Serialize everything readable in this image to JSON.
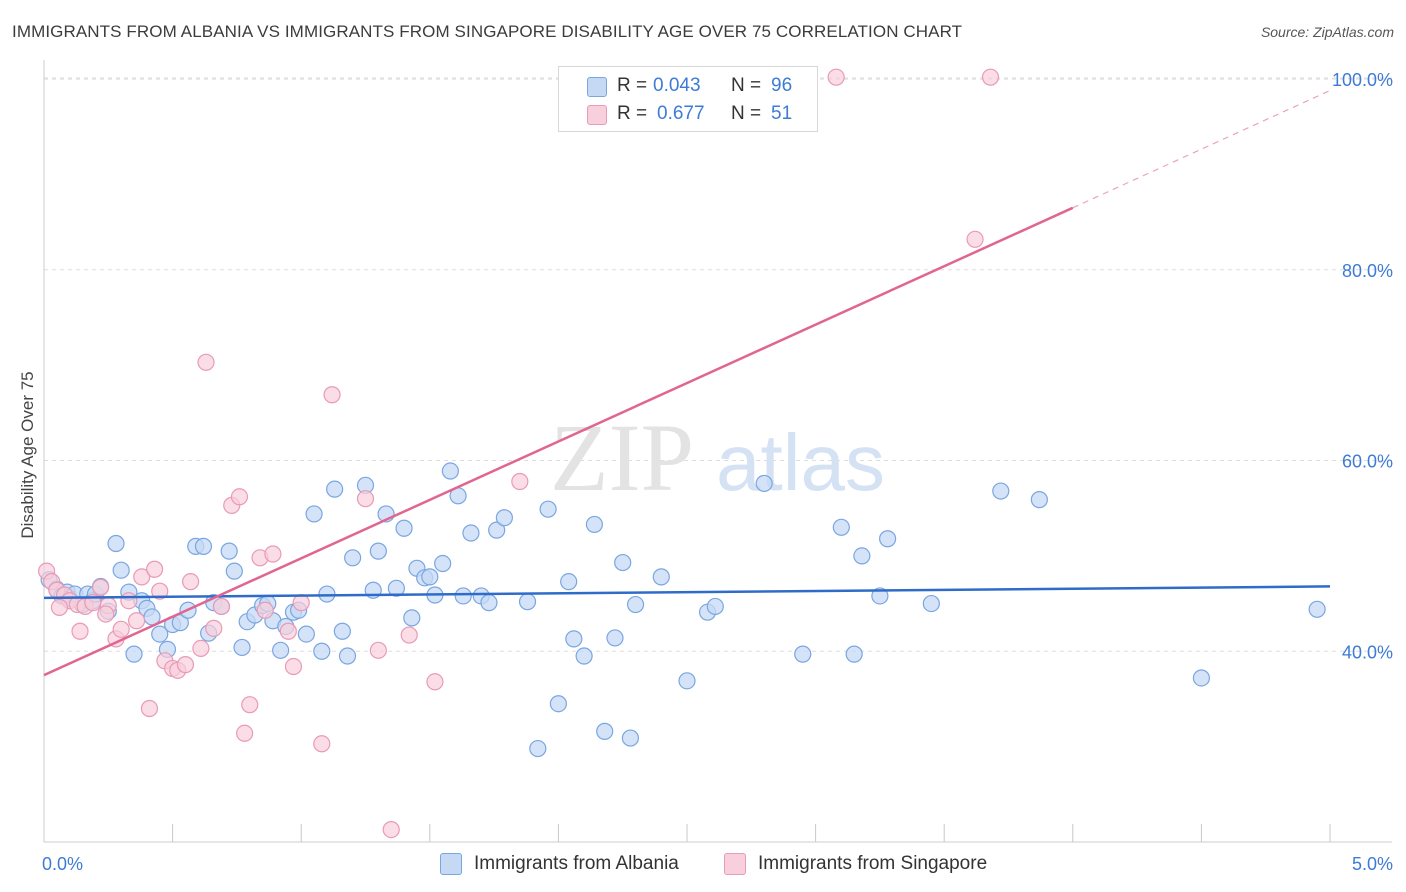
{
  "title": "IMMIGRANTS FROM ALBANIA VS IMMIGRANTS FROM SINGAPORE DISABILITY AGE OVER 75 CORRELATION CHART",
  "source": "Source: ZipAtlas.com",
  "watermark": {
    "zip": "ZIP",
    "atlas": "atlas"
  },
  "legend": {
    "rows": [
      {
        "r_label": "R =",
        "r_value": "0.043",
        "n_label": "N =",
        "n_value": "96"
      },
      {
        "r_label": "R =",
        "r_value": "0.677",
        "n_label": "N =",
        "n_value": "51"
      }
    ]
  },
  "colors": {
    "albania_fill": "#c5d9f5",
    "albania_stroke": "#7aa6e0",
    "albania_line": "#2f6cc9",
    "singapore_fill": "#f8cfdc",
    "singapore_stroke": "#e99ab5",
    "singapore_line": "#e06591",
    "tick_text": "#3d7bd4",
    "grid": "#dddddd"
  },
  "chart_data": {
    "type": "scatter",
    "title": "IMMIGRANTS FROM ALBANIA VS IMMIGRANTS FROM SINGAPORE DISABILITY AGE OVER 75 CORRELATION CHART",
    "xlabel": "",
    "ylabel": "Disability Age Over 75",
    "xlim": [
      0,
      5
    ],
    "ylim": [
      20,
      102
    ],
    "x_tick_labels": [
      "0.0%",
      "5.0%"
    ],
    "y_ticks": [
      40,
      60,
      80,
      100
    ],
    "y_tick_labels": [
      "40.0%",
      "60.0%",
      "80.0%",
      "100.0%"
    ],
    "grid": true,
    "legend_position": "top-center",
    "series": [
      {
        "name": "Immigrants from Albania",
        "R": 0.043,
        "N": 96,
        "trend": {
          "x": [
            0,
            5
          ],
          "y": [
            45.6,
            46.8
          ]
        },
        "points": [
          [
            0.02,
            47.5
          ],
          [
            0.05,
            46.5
          ],
          [
            0.07,
            45.8
          ],
          [
            0.09,
            46.2
          ],
          [
            0.1,
            45.5
          ],
          [
            0.12,
            46
          ],
          [
            0.15,
            44.9
          ],
          [
            0.17,
            46
          ],
          [
            0.19,
            45.3
          ],
          [
            0.2,
            46
          ],
          [
            0.22,
            46.8
          ],
          [
            0.25,
            44.2
          ],
          [
            0.28,
            51.3
          ],
          [
            0.3,
            48.5
          ],
          [
            0.33,
            46.2
          ],
          [
            0.35,
            39.7
          ],
          [
            0.38,
            45.3
          ],
          [
            0.4,
            44.5
          ],
          [
            0.42,
            43.6
          ],
          [
            0.45,
            41.8
          ],
          [
            0.48,
            40.2
          ],
          [
            0.5,
            42.8
          ],
          [
            0.53,
            43
          ],
          [
            0.56,
            44.3
          ],
          [
            0.59,
            51
          ],
          [
            0.62,
            51
          ],
          [
            0.64,
            41.9
          ],
          [
            0.66,
            45.1
          ],
          [
            0.69,
            44.7
          ],
          [
            0.72,
            50.5
          ],
          [
            0.74,
            48.4
          ],
          [
            0.77,
            40.4
          ],
          [
            0.79,
            43.1
          ],
          [
            0.82,
            43.8
          ],
          [
            0.85,
            44.8
          ],
          [
            0.87,
            45
          ],
          [
            0.89,
            43.2
          ],
          [
            0.92,
            40.1
          ],
          [
            0.94,
            42.6
          ],
          [
            0.97,
            44.1
          ],
          [
            0.99,
            44.3
          ],
          [
            1.02,
            41.8
          ],
          [
            1.05,
            54.4
          ],
          [
            1.08,
            40
          ],
          [
            1.1,
            46
          ],
          [
            1.13,
            57
          ],
          [
            1.16,
            42.1
          ],
          [
            1.18,
            39.5
          ],
          [
            1.2,
            49.8
          ],
          [
            1.25,
            57.4
          ],
          [
            1.28,
            46.4
          ],
          [
            1.3,
            50.5
          ],
          [
            1.33,
            54.4
          ],
          [
            1.37,
            46.6
          ],
          [
            1.4,
            52.9
          ],
          [
            1.43,
            43.5
          ],
          [
            1.45,
            48.7
          ],
          [
            1.48,
            47.7
          ],
          [
            1.5,
            47.8
          ],
          [
            1.52,
            45.9
          ],
          [
            1.55,
            49.2
          ],
          [
            1.58,
            58.9
          ],
          [
            1.61,
            56.3
          ],
          [
            1.63,
            45.8
          ],
          [
            1.66,
            52.4
          ],
          [
            1.7,
            45.8
          ],
          [
            1.73,
            45.1
          ],
          [
            1.76,
            52.7
          ],
          [
            1.79,
            54
          ],
          [
            1.88,
            45.2
          ],
          [
            1.92,
            29.8
          ],
          [
            1.96,
            54.9
          ],
          [
            2.0,
            34.5
          ],
          [
            2.04,
            47.3
          ],
          [
            2.06,
            41.3
          ],
          [
            2.1,
            39.5
          ],
          [
            2.14,
            53.3
          ],
          [
            2.18,
            31.6
          ],
          [
            2.22,
            41.4
          ],
          [
            2.25,
            49.3
          ],
          [
            2.28,
            30.9
          ],
          [
            2.3,
            44.9
          ],
          [
            2.4,
            47.8
          ],
          [
            2.5,
            36.9
          ],
          [
            2.58,
            44.1
          ],
          [
            2.61,
            44.7
          ],
          [
            2.8,
            57.6
          ],
          [
            2.95,
            39.7
          ],
          [
            3.1,
            53
          ],
          [
            3.15,
            39.7
          ],
          [
            3.18,
            50
          ],
          [
            3.25,
            45.8
          ],
          [
            3.28,
            51.8
          ],
          [
            3.45,
            45
          ],
          [
            3.72,
            56.8
          ],
          [
            3.87,
            55.9
          ],
          [
            4.5,
            37.2
          ],
          [
            4.95,
            44.4
          ]
        ]
      },
      {
        "name": "Immigrants from Singapore",
        "R": 0.677,
        "N": 51,
        "trend": {
          "x": [
            0,
            4
          ],
          "y": [
            37.5,
            86.5
          ]
        },
        "trend_extension": {
          "x": [
            4,
            5
          ],
          "y": [
            86.5,
            98.8
          ]
        },
        "points": [
          [
            0.01,
            48.4
          ],
          [
            0.03,
            47.3
          ],
          [
            0.05,
            46.4
          ],
          [
            0.08,
            45.9
          ],
          [
            0.1,
            45.3
          ],
          [
            0.13,
            44.9
          ],
          [
            0.16,
            44.7
          ],
          [
            0.19,
            45.1
          ],
          [
            0.22,
            46.7
          ],
          [
            0.25,
            44.8
          ],
          [
            0.28,
            41.3
          ],
          [
            0.3,
            42.3
          ],
          [
            0.33,
            45.3
          ],
          [
            0.36,
            43.2
          ],
          [
            0.38,
            47.8
          ],
          [
            0.41,
            34
          ],
          [
            0.43,
            48.6
          ],
          [
            0.45,
            46.3
          ],
          [
            0.47,
            39
          ],
          [
            0.5,
            38.2
          ],
          [
            0.52,
            38
          ],
          [
            0.55,
            38.6
          ],
          [
            0.57,
            47.3
          ],
          [
            0.61,
            40.3
          ],
          [
            0.63,
            70.3
          ],
          [
            0.66,
            42.4
          ],
          [
            0.69,
            44.7
          ],
          [
            0.73,
            55.3
          ],
          [
            0.76,
            56.2
          ],
          [
            0.78,
            31.4
          ],
          [
            0.8,
            34.4
          ],
          [
            0.84,
            49.8
          ],
          [
            0.86,
            44.3
          ],
          [
            0.89,
            50.2
          ],
          [
            0.95,
            42.1
          ],
          [
            0.97,
            38.4
          ],
          [
            1.0,
            45.1
          ],
          [
            1.08,
            30.3
          ],
          [
            1.12,
            66.9
          ],
          [
            1.25,
            56
          ],
          [
            1.3,
            40.1
          ],
          [
            1.35,
            21.3
          ],
          [
            1.42,
            41.7
          ],
          [
            1.52,
            36.8
          ],
          [
            1.85,
            57.8
          ],
          [
            3.08,
            100.2
          ],
          [
            3.62,
            83.2
          ],
          [
            3.68,
            100.2
          ],
          [
            0.06,
            44.6
          ],
          [
            0.24,
            43.9
          ],
          [
            0.14,
            42.1
          ]
        ]
      }
    ]
  }
}
